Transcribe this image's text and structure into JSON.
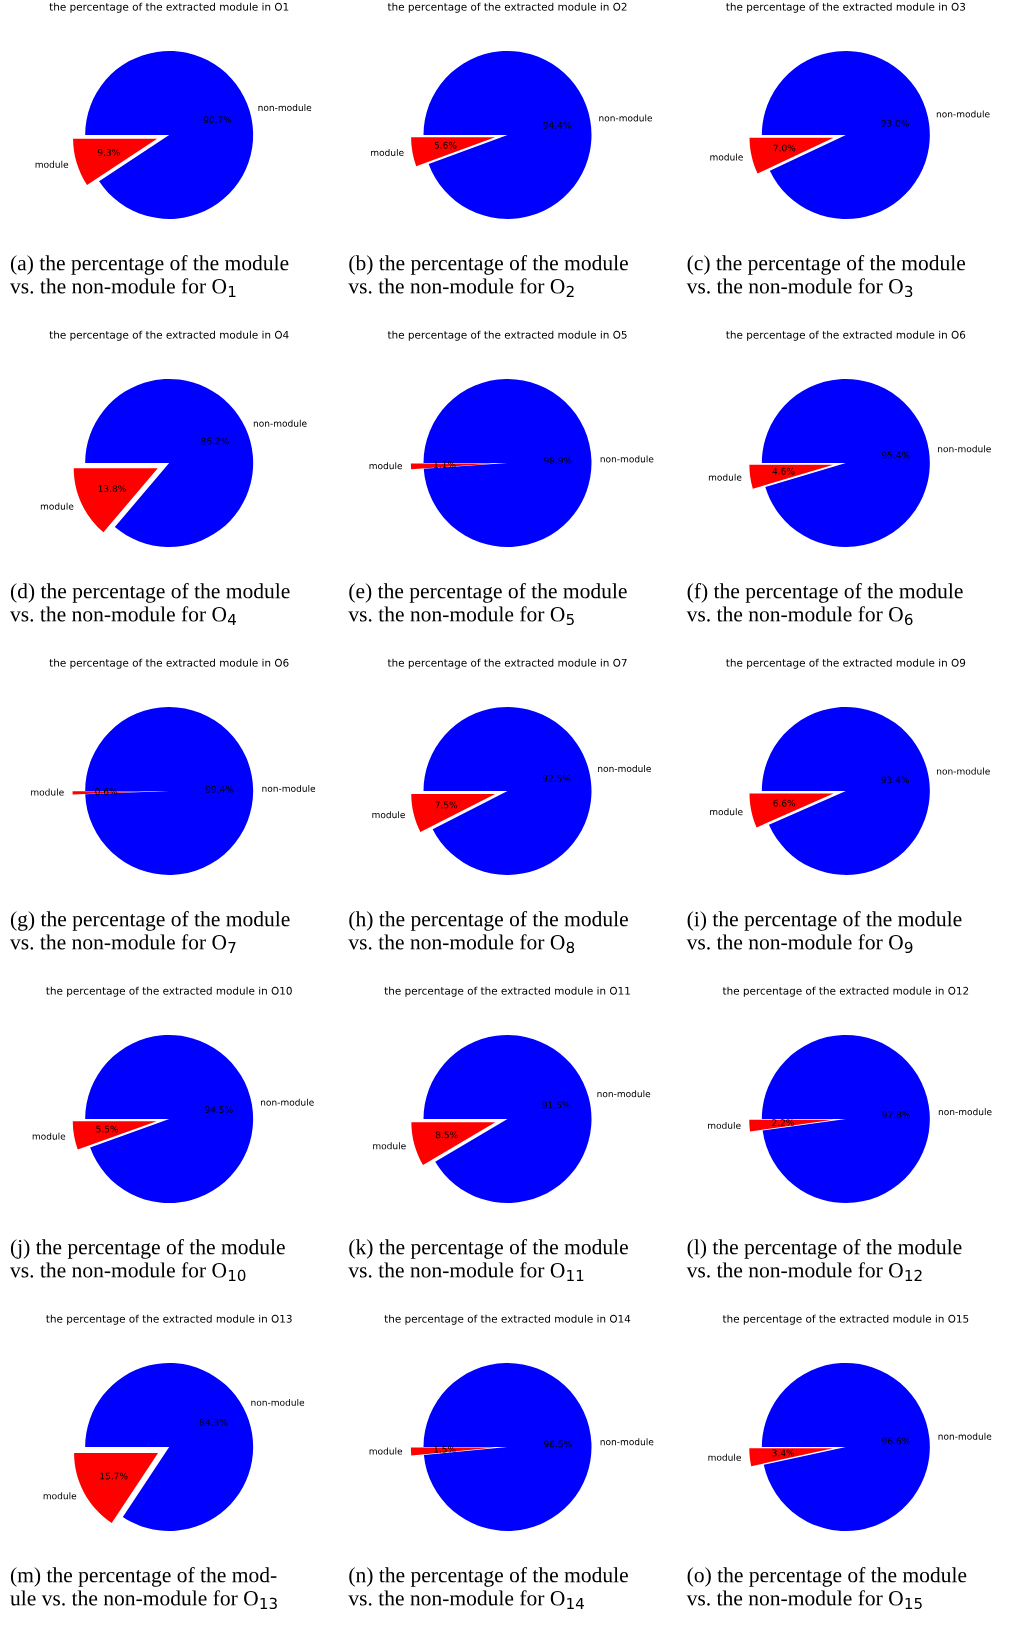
{
  "chart_data": [
    {
      "type": "pie",
      "title": "the percentage of the extracted module in O1",
      "categories": [
        "module",
        "non-module"
      ],
      "values": [
        9.3,
        90.7
      ],
      "colors": [
        "#ff0000",
        "#0000ff"
      ],
      "value_labels": [
        "9.3%",
        "90.7%"
      ],
      "annotations": [
        "(a) the percentage of the module\nvs. the non-module for O$_{1}$"
      ]
    },
    {
      "type": "pie",
      "title": "the percentage of the extracted module in O2",
      "categories": [
        "module",
        "non-module"
      ],
      "values": [
        5.6,
        94.4
      ],
      "colors": [
        "#ff0000",
        "#0000ff"
      ],
      "value_labels": [
        "5.6%",
        "94.4%"
      ],
      "annotations": [
        "(b) the percentage of the module\nvs. the non-module for O$_{2}$"
      ]
    },
    {
      "type": "pie",
      "title": "the percentage of the extracted module in O3",
      "categories": [
        "module",
        "non-module"
      ],
      "values": [
        7.0,
        93.0
      ],
      "colors": [
        "#ff0000",
        "#0000ff"
      ],
      "value_labels": [
        "7.0%",
        "93.0%"
      ],
      "annotations": [
        "(c) the percentage of the module\nvs. the non-module for O$_{3}$"
      ]
    },
    {
      "type": "pie",
      "title": "the percentage of the extracted module in O4",
      "categories": [
        "module",
        "non-module"
      ],
      "values": [
        13.8,
        86.2
      ],
      "colors": [
        "#ff0000",
        "#0000ff"
      ],
      "value_labels": [
        "13.8%",
        "86.2%"
      ],
      "annotations": [
        "(d) the percentage of the module\nvs. the non-module for O$_{4}$"
      ]
    },
    {
      "type": "pie",
      "title": "the percentage of the extracted module in O5",
      "categories": [
        "module",
        "non-module"
      ],
      "values": [
        1.1,
        98.9
      ],
      "colors": [
        "#ff0000",
        "#0000ff"
      ],
      "value_labels": [
        "1.1%",
        "98.9%"
      ],
      "annotations": [
        "(e) the percentage of the module\nvs. the non-module for O$_{5}$"
      ]
    },
    {
      "type": "pie",
      "title": "the percentage of the extracted module in O6",
      "categories": [
        "module",
        "non-module"
      ],
      "values": [
        4.6,
        95.4
      ],
      "colors": [
        "#ff0000",
        "#0000ff"
      ],
      "value_labels": [
        "4.6%",
        "95.4%"
      ],
      "annotations": [
        "(f) the percentage of the module\nvs. the non-module for O$_{6}$"
      ]
    },
    {
      "type": "pie",
      "title": "the percentage of the extracted module in O6",
      "categories": [
        "module",
        "non-module"
      ],
      "values": [
        0.6,
        99.4
      ],
      "colors": [
        "#ff0000",
        "#0000ff"
      ],
      "value_labels": [
        "0.6%",
        "99.4%"
      ],
      "annotations": [
        "(g) the percentage of the module\nvs. the non-module for O$_{7}$"
      ]
    },
    {
      "type": "pie",
      "title": "the percentage of the extracted module in O7",
      "categories": [
        "module",
        "non-module"
      ],
      "values": [
        7.5,
        92.5
      ],
      "colors": [
        "#ff0000",
        "#0000ff"
      ],
      "value_labels": [
        "7.5%",
        "92.5%"
      ],
      "annotations": [
        "(h) the percentage of the module\nvs. the non-module for O$_{8}$"
      ]
    },
    {
      "type": "pie",
      "title": "the percentage of the extracted module in O9",
      "categories": [
        "module",
        "non-module"
      ],
      "values": [
        6.6,
        93.4
      ],
      "colors": [
        "#ff0000",
        "#0000ff"
      ],
      "value_labels": [
        "6.6%",
        "93.4%"
      ],
      "annotations": [
        "(i) the percentage of the module\nvs. the non-module for O$_{9}$"
      ]
    },
    {
      "type": "pie",
      "title": "the percentage of the extracted module in O10",
      "categories": [
        "module",
        "non-module"
      ],
      "values": [
        5.5,
        94.5
      ],
      "colors": [
        "#ff0000",
        "#0000ff"
      ],
      "value_labels": [
        "5.5%",
        "94.5%"
      ],
      "annotations": [
        "(j) the percentage of the module\nvs. the non-module for O$_{10}$"
      ]
    },
    {
      "type": "pie",
      "title": "the percentage of the extracted module in O11",
      "categories": [
        "module",
        "non-module"
      ],
      "values": [
        8.5,
        91.5
      ],
      "colors": [
        "#ff0000",
        "#0000ff"
      ],
      "value_labels": [
        "8.5%",
        "91.5%"
      ],
      "annotations": [
        "(k) the percentage of the module\nvs. the non-module for O$_{11}$"
      ]
    },
    {
      "type": "pie",
      "title": "the percentage of the extracted module in O12",
      "categories": [
        "module",
        "non-module"
      ],
      "values": [
        2.2,
        97.8
      ],
      "colors": [
        "#ff0000",
        "#0000ff"
      ],
      "value_labels": [
        "2.2%",
        "97.8%"
      ],
      "annotations": [
        "(l) the percentage of the module\nvs. the non-module for O$_{12}$"
      ]
    },
    {
      "type": "pie",
      "title": "the percentage of the extracted module in O13",
      "categories": [
        "module",
        "non-module"
      ],
      "values": [
        15.7,
        84.3
      ],
      "colors": [
        "#ff0000",
        "#0000ff"
      ],
      "value_labels": [
        "15.7%",
        "84.3%"
      ],
      "annotations": [
        "(m) the percentage of the mod-\nule vs. the non-module for O$_{13}$"
      ]
    },
    {
      "type": "pie",
      "title": "the percentage of the extracted module in O14",
      "categories": [
        "module",
        "non-module"
      ],
      "values": [
        1.5,
        98.5
      ],
      "colors": [
        "#ff0000",
        "#0000ff"
      ],
      "value_labels": [
        "1.5%",
        "98.5%"
      ],
      "annotations": [
        "(n) the percentage of the module\nvs. the non-module for O$_{14}$"
      ]
    },
    {
      "type": "pie",
      "title": "the percentage of the extracted module in O15",
      "categories": [
        "module",
        "non-module"
      ],
      "values": [
        3.4,
        96.6
      ],
      "colors": [
        "#ff0000",
        "#0000ff"
      ],
      "value_labels": [
        "3.4%",
        "96.6%"
      ],
      "annotations": [
        "(o) the percentage of the module\nvs. the non-module for O$_{15}$"
      ]
    }
  ]
}
